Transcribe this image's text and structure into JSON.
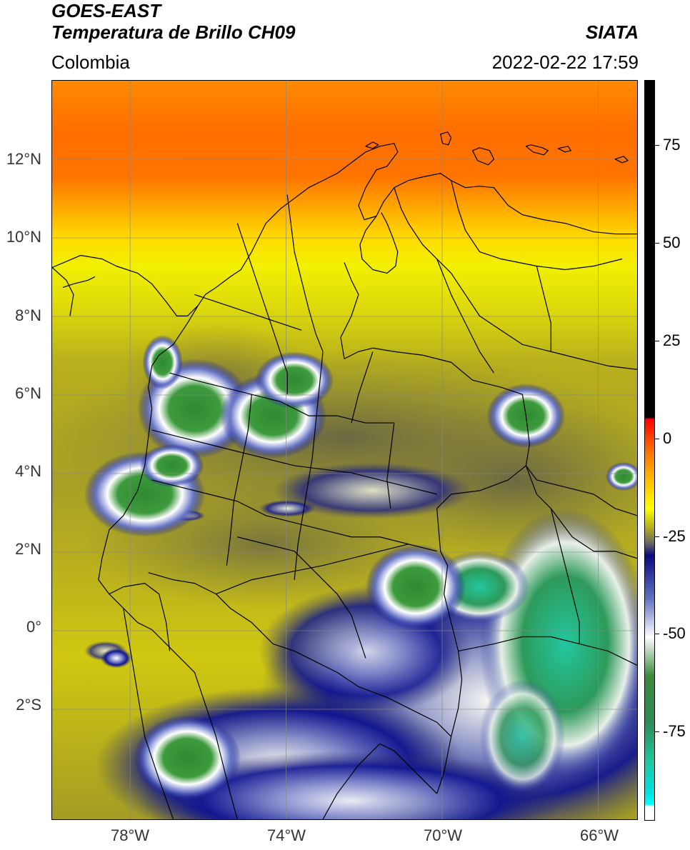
{
  "header": {
    "satellite": "GOES-EAST",
    "product": "Temperatura de Brillo CH09",
    "region": "Colombia",
    "agency": "SIATA",
    "timestamp": "2022-02-22 17:59"
  },
  "map": {
    "lat_labels": [
      "12°N",
      "10°N",
      "8°N",
      "6°N",
      "4°N",
      "2°N",
      "0°",
      "2°S"
    ],
    "lon_labels": [
      "78°W",
      "74°W",
      "70°W",
      "66°W"
    ],
    "lat_range": [
      -4.8,
      14.0
    ],
    "lon_range": [
      -80.0,
      -65.0
    ],
    "grid_lats": [
      12,
      10,
      8,
      6,
      4,
      2,
      0,
      -2
    ],
    "grid_lons": [
      -78,
      -74,
      -70,
      -66
    ],
    "colors": {
      "warm_orange": "#ff6a00",
      "orange": "#ff8c00",
      "yellow": "#ffff00",
      "olive": "#b3ad1a",
      "gray_olive": "#6d6b3f",
      "navy": "#0a0f8a",
      "white": "#ffffff",
      "green": "#2e8b2e",
      "teal": "#22c7a0"
    }
  },
  "colorbar": {
    "label_values": [
      "75",
      "50",
      "25",
      "0",
      "-25",
      "-50",
      "-75"
    ],
    "tick_values": [
      75,
      50,
      25,
      0,
      -25,
      -50,
      -75
    ],
    "range": [
      -95,
      95
    ],
    "stops": [
      {
        "value": 95,
        "color": "#000000"
      },
      {
        "value": 8.5,
        "color": "#000000"
      },
      {
        "value": 8,
        "color": "#ff0000"
      },
      {
        "value": 0,
        "color": "#ff7000"
      },
      {
        "value": -8,
        "color": "#ffc000"
      },
      {
        "value": -15,
        "color": "#ffff00"
      },
      {
        "value": -20,
        "color": "#b0aa20"
      },
      {
        "value": -24,
        "color": "#666666"
      },
      {
        "value": -27,
        "color": "#0a0a80"
      },
      {
        "value": -38,
        "color": "#6070c0"
      },
      {
        "value": -48,
        "color": "#ffffff"
      },
      {
        "value": -58,
        "color": "#3a8a3a"
      },
      {
        "value": -70,
        "color": "#2e8b57"
      },
      {
        "value": -80,
        "color": "#20c8a0"
      },
      {
        "value": -88,
        "color": "#00e0e0"
      },
      {
        "value": -91,
        "color": "#00ffff"
      },
      {
        "value": -91.5,
        "color": "#ffffff"
      },
      {
        "value": -95,
        "color": "#ffffff"
      }
    ]
  }
}
